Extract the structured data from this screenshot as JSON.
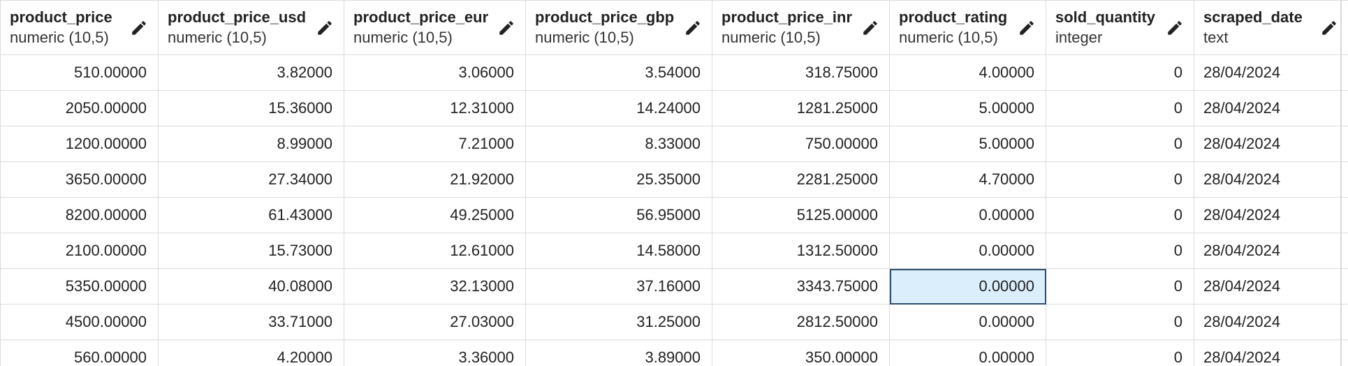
{
  "columns": [
    {
      "name": "product_price",
      "type": "numeric (10,5)",
      "align": "num"
    },
    {
      "name": "product_price_usd",
      "type": "numeric (10,5)",
      "align": "num"
    },
    {
      "name": "product_price_eur",
      "type": "numeric (10,5)",
      "align": "num"
    },
    {
      "name": "product_price_gbp",
      "type": "numeric (10,5)",
      "align": "num"
    },
    {
      "name": "product_price_inr",
      "type": "numeric (10,5)",
      "align": "num"
    },
    {
      "name": "product_rating",
      "type": "numeric (10,5)",
      "align": "num"
    },
    {
      "name": "sold_quantity",
      "type": "integer",
      "align": "num"
    },
    {
      "name": "scraped_date",
      "type": "text",
      "align": "txt"
    }
  ],
  "rows": [
    [
      "510.00000",
      "3.82000",
      "3.06000",
      "3.54000",
      "318.75000",
      "4.00000",
      "0",
      "28/04/2024"
    ],
    [
      "2050.00000",
      "15.36000",
      "12.31000",
      "14.24000",
      "1281.25000",
      "5.00000",
      "0",
      "28/04/2024"
    ],
    [
      "1200.00000",
      "8.99000",
      "7.21000",
      "8.33000",
      "750.00000",
      "5.00000",
      "0",
      "28/04/2024"
    ],
    [
      "3650.00000",
      "27.34000",
      "21.92000",
      "25.35000",
      "2281.25000",
      "4.70000",
      "0",
      "28/04/2024"
    ],
    [
      "8200.00000",
      "61.43000",
      "49.25000",
      "56.95000",
      "5125.00000",
      "0.00000",
      "0",
      "28/04/2024"
    ],
    [
      "2100.00000",
      "15.73000",
      "12.61000",
      "14.58000",
      "1312.50000",
      "0.00000",
      "0",
      "28/04/2024"
    ],
    [
      "5350.00000",
      "40.08000",
      "32.13000",
      "37.16000",
      "3343.75000",
      "0.00000",
      "0",
      "28/04/2024"
    ],
    [
      "4500.00000",
      "33.71000",
      "27.03000",
      "31.25000",
      "2812.50000",
      "0.00000",
      "0",
      "28/04/2024"
    ],
    [
      "560.00000",
      "4.20000",
      "3.36000",
      "3.89000",
      "350.00000",
      "0.00000",
      "0",
      "28/04/2024"
    ]
  ],
  "selected_cell": {
    "row": 6,
    "col": 5
  },
  "icons": {
    "column_edit": "pencil-icon"
  },
  "colors": {
    "selection_fill": "#daeefb",
    "selection_border": "#2d4e6e",
    "grid_line": "#dcdcdc"
  }
}
